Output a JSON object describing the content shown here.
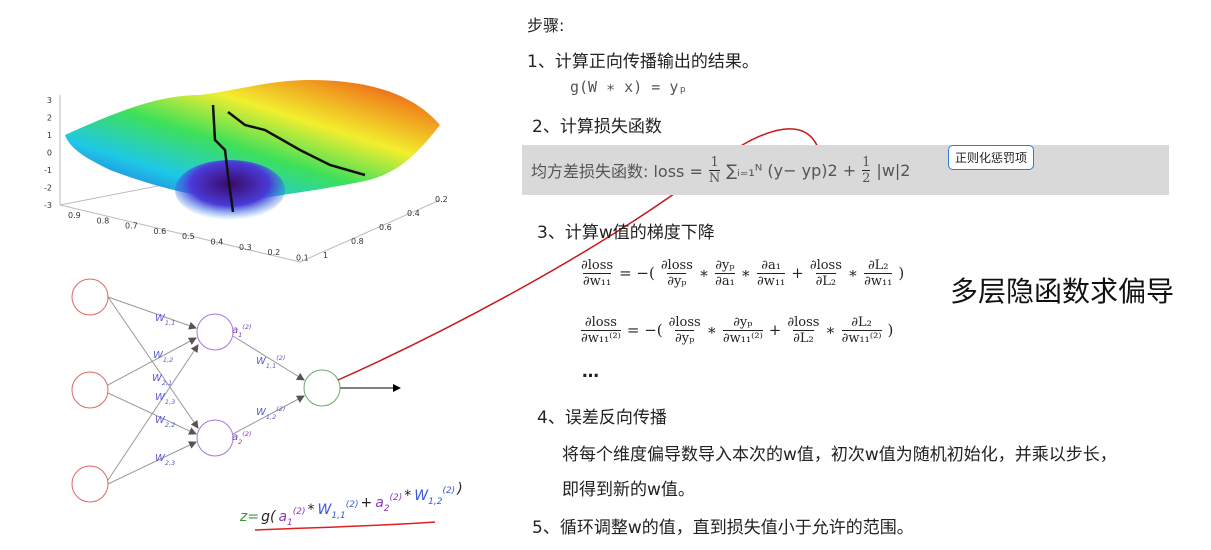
{
  "plot": {
    "z_ticks": [
      "3",
      "2",
      "1",
      "0",
      "-1",
      "-2",
      "-3"
    ],
    "x_ticks": [
      "0.9",
      "0.8",
      "0.7",
      "0.6",
      "0.5",
      "0.4",
      "0.3",
      "0.2",
      "0.1"
    ],
    "y_ticks": [
      "0.2",
      "0.4",
      "0.6",
      "0.8",
      "1"
    ]
  },
  "network": {
    "weights_in": [
      {
        "base": "W",
        "sub": "1,1"
      },
      {
        "base": "W",
        "sub": "1,2"
      },
      {
        "base": "W",
        "sub": "2,1"
      },
      {
        "base": "W",
        "sub": "1,3"
      },
      {
        "base": "W",
        "sub": "2,2"
      },
      {
        "base": "W",
        "sub": "2,3"
      }
    ],
    "hidden": [
      {
        "base": "a",
        "sub": "1",
        "sup": "(2)"
      },
      {
        "base": "a",
        "sub": "2",
        "sup": "(2)"
      }
    ],
    "weights_out": [
      {
        "base": "W",
        "sub": "1,1",
        "sup": "(2)"
      },
      {
        "base": "W",
        "sub": "1,2",
        "sup": "(2)"
      }
    ],
    "formula": [
      "z=",
      "g(",
      {
        "base": "a",
        "sub": "1",
        "sup": "(2)"
      },
      "*",
      {
        "base": "W",
        "sub": "1,1",
        "sup": "(2)"
      },
      "+",
      {
        "base": "a",
        "sub": "2",
        "sup": "(2)"
      },
      "*",
      {
        "base": "W",
        "sub": "1,2",
        "sup": "(2)"
      },
      ")"
    ]
  },
  "steps": {
    "heading": "步骤:",
    "step1": "1、计算正向传播输出的结果。",
    "forward": "g(W ∗ x) = yₚ",
    "step2": "2、计算损失函数",
    "loss": [
      "均方差损失函数: loss = ",
      {
        "num": "1",
        "den": "N"
      },
      "∑ᵢ₌₁ᴺ (y− yp)2 + ",
      {
        "num": "1",
        "den": "2"
      },
      " |w|2"
    ],
    "callout": "正则化惩罚项",
    "step3": "3、计算w值的梯度下降",
    "eq1": [
      {
        "num": "∂loss",
        "den": "∂w₁₁"
      },
      "= −(",
      {
        "num": "∂loss",
        "den": "∂yₚ"
      },
      "∗",
      {
        "num": "∂yₚ",
        "den": "∂a₁"
      },
      "∗",
      {
        "num": "∂a₁",
        "den": "∂w₁₁"
      },
      "+",
      {
        "num": "∂loss",
        "den": "∂L₂"
      },
      "∗",
      {
        "num": "∂L₂",
        "den": "∂w₁₁"
      },
      ")"
    ],
    "eq2": [
      {
        "num": "∂loss",
        "den": "∂w₁₁⁽²⁾"
      },
      "= −(",
      {
        "num": "∂loss",
        "den": "∂yₚ"
      },
      "∗",
      {
        "num": "∂yₚ",
        "den": "∂w₁₁⁽²⁾"
      },
      "+",
      {
        "num": "∂loss",
        "den": "∂L₂"
      },
      "∗",
      {
        "num": "∂L₂",
        "den": "∂w₁₁⁽²⁾"
      },
      ")"
    ],
    "dots": "…",
    "side_note": "多层隐函数求偏导",
    "step4": "4、误差反向传播",
    "step4_line1": "将每个维度偏导数导入本次的w值，初次w值为随机初始化，并乘以步长，",
    "step4_line2": "即得到新的w值。",
    "step5": "5、循环调整w的值，直到损失值小于允许的范围。"
  }
}
